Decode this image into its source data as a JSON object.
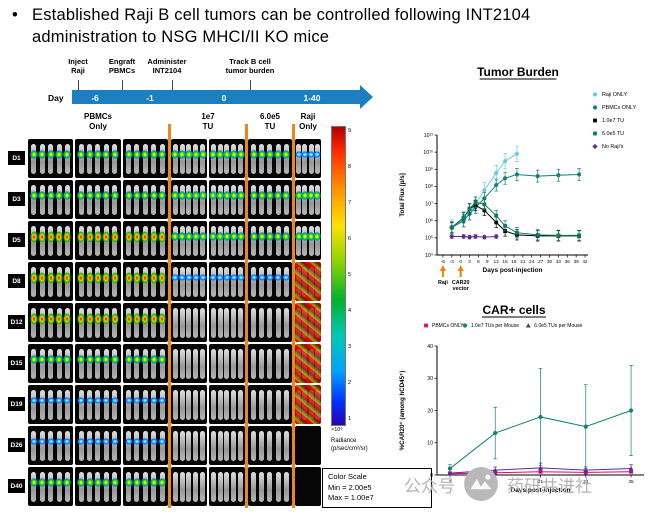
{
  "title": {
    "bullet": "•",
    "text": "Established Raji B cell tumors can be controlled following INT2104 administration to NSG MHCI/II KO mice"
  },
  "timeline": {
    "day_label": "Day",
    "events": [
      {
        "label": "Inject\nRaji",
        "day": "-6"
      },
      {
        "label": "Engraft\nPBMCs",
        "day": "-1"
      },
      {
        "label": "Administer\nINT2104",
        "day": "0"
      },
      {
        "label": "Track B cell\ntumor burden",
        "day": "1-40"
      }
    ]
  },
  "mouse_grid": {
    "column_groups": [
      {
        "label": "PBMCs\nOnly",
        "panels": 3,
        "mice_per_panel": 5
      },
      {
        "label": "1e7\nTU",
        "panels": 2,
        "mice_per_panel": 5
      },
      {
        "label": "6.0e5\nTU",
        "panels": 1,
        "mice_per_panel": 5
      },
      {
        "label": "Raji\nOnly",
        "panels": 1,
        "mice_per_panel": 4
      }
    ],
    "rows": [
      {
        "label": "D1",
        "signals": [
          "med",
          "med",
          "med",
          "low"
        ]
      },
      {
        "label": "D3",
        "signals": [
          "med",
          "med",
          "med",
          "med"
        ]
      },
      {
        "label": "D5",
        "signals": [
          "high",
          "med",
          "med",
          "med"
        ]
      },
      {
        "label": "D8",
        "signals": [
          "high",
          "low",
          "low",
          "full"
        ]
      },
      {
        "label": "D12",
        "signals": [
          "high",
          "none",
          "none",
          "full"
        ]
      },
      {
        "label": "D15",
        "signals": [
          "med",
          "none",
          "none",
          "full"
        ]
      },
      {
        "label": "D19",
        "signals": [
          "low",
          "none",
          "none",
          "full"
        ]
      },
      {
        "label": "D26",
        "signals": [
          "low",
          "none",
          "none",
          "dead"
        ]
      },
      {
        "label": "D40",
        "signals": [
          "med",
          "none",
          "none",
          "dead"
        ]
      }
    ]
  },
  "color_scale": {
    "ticks": [
      "9",
      "8",
      "7",
      "6",
      "5",
      "4",
      "3",
      "2",
      "1"
    ],
    "multiplier": "×10⁶",
    "label": "Radiance",
    "units": "(p/sec/cm²/sr)",
    "box": {
      "title": "Color Scale",
      "min": "Min = 2.00e5",
      "max": "Max = 1.00e7"
    }
  },
  "watermark": {
    "prefix": "公众号",
    "suffix": "药研共进社"
  },
  "chart_data": [
    {
      "id": "tumor-burden",
      "type": "line",
      "title": "Tumor Burden",
      "xlabel": "Days post-injection",
      "ylabel": "Total Flux [p/s]",
      "yscale": "log",
      "ylim": [
        10000.0,
        100000000000.0
      ],
      "yticks_exp": [
        4,
        5,
        6,
        7,
        8,
        9,
        10,
        11
      ],
      "xlim": [
        -8,
        43
      ],
      "xticks": [
        -6,
        -3,
        0,
        3,
        6,
        9,
        12,
        15,
        18,
        21,
        24,
        27,
        30,
        33,
        36,
        39,
        42
      ],
      "legend_position": "right",
      "grid": false,
      "series": [
        {
          "name": "Raji ONLY",
          "color": "#6fc7e8",
          "marker": "circle",
          "x": [
            -3,
            1,
            3,
            5,
            8,
            12,
            15,
            19
          ],
          "y": [
            400000.0,
            1200000.0,
            3000000.0,
            9000000.0,
            60000000.0,
            600000000.0,
            3000000000.0,
            8000000000.0
          ],
          "logerr": 0.45
        },
        {
          "name": "PBMCs ONLY",
          "color": "#157f78",
          "marker": "circle",
          "x": [
            -3,
            1,
            3,
            5,
            8,
            12,
            15,
            19,
            26,
            33,
            40
          ],
          "y": [
            400000.0,
            1000000.0,
            2500000.0,
            6000000.0,
            20000000.0,
            120000000.0,
            300000000.0,
            500000000.0,
            400000000.0,
            450000000.0,
            500000000.0
          ],
          "logerr": 0.35
        },
        {
          "name": "1.0e7 TU",
          "color": "#000000",
          "marker": "square",
          "x": [
            -3,
            1,
            3,
            5,
            8,
            12,
            15,
            19,
            26,
            33,
            40
          ],
          "y": [
            400000.0,
            1500000.0,
            5000000.0,
            8000000.0,
            4000000.0,
            800000.0,
            250000.0,
            150000.0,
            130000.0,
            130000.0,
            130000.0
          ],
          "logerr": 0.3
        },
        {
          "name": "6.0e5 TU",
          "color": "#0e7a5a",
          "marker": "square",
          "x": [
            -3,
            1,
            3,
            5,
            8,
            12,
            15,
            19,
            26,
            33,
            40
          ],
          "y": [
            400000.0,
            1500000.0,
            5000000.0,
            12000000.0,
            9000000.0,
            2000000.0,
            500000.0,
            200000.0,
            150000.0,
            140000.0,
            140000.0
          ],
          "logerr": 0.3
        },
        {
          "name": "No Raji's",
          "color": "#5b2d8e",
          "marker": "diamond",
          "x": [
            -3,
            1,
            3,
            5,
            8,
            12
          ],
          "y": [
            120000.0,
            120000.0,
            110000.0,
            120000.0,
            110000.0,
            120000.0
          ],
          "logerr": 0.1
        }
      ],
      "annotations": [
        {
          "x": -6,
          "label": "Raji"
        },
        {
          "x": 0,
          "label": "CAR20\nvector"
        }
      ]
    },
    {
      "id": "car-cells",
      "type": "line",
      "title": "CAR+ cells",
      "xlabel": "Days post-injection",
      "ylabel": "%CAR20⁺ (among hCD45⁺)",
      "yscale": "linear",
      "ylim": [
        0,
        40
      ],
      "yticks": [
        0,
        10,
        20,
        30,
        40
      ],
      "xlim": [
        5,
        37
      ],
      "xticks": [
        7,
        14,
        21,
        28,
        35
      ],
      "legend_position": "top",
      "grid": false,
      "series": [
        {
          "name": "PBMCs ONLY",
          "color": "#e6007e",
          "marker": "square",
          "x": [
            7,
            14,
            21,
            28,
            35
          ],
          "y": [
            0.4,
            0.7,
            1.0,
            0.8,
            1.0
          ],
          "err": [
            0.2,
            0.3,
            0.4,
            0.3,
            0.4
          ]
        },
        {
          "name": "1.0e7 TUs per Mouse",
          "color": "#157f78",
          "marker": "circle",
          "x": [
            7,
            14,
            21,
            28,
            35
          ],
          "y": [
            2,
            13,
            18,
            15,
            20
          ],
          "err": [
            1.2,
            8,
            15,
            13,
            14
          ]
        },
        {
          "name": "6.0e5 TUs per Mouse",
          "color": "#5b2d8e",
          "marker": "triangle",
          "x": [
            7,
            14,
            21,
            28,
            35
          ],
          "y": [
            0.6,
            1.5,
            2.2,
            1.5,
            2.0
          ],
          "err": [
            0.4,
            1.0,
            1.5,
            1.0,
            1.2
          ]
        }
      ]
    }
  ]
}
